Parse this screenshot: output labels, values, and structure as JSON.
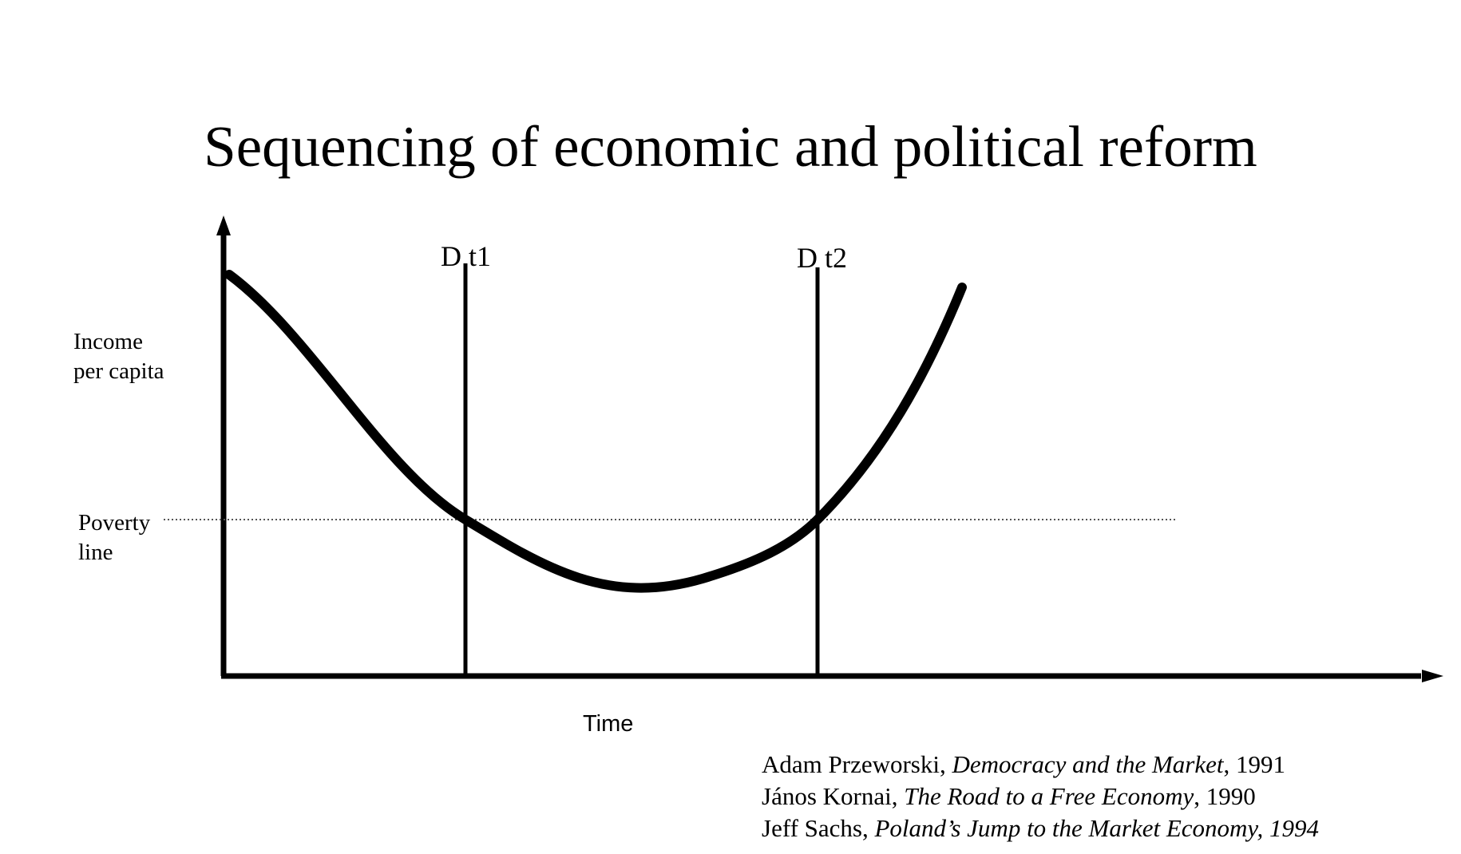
{
  "slide": {
    "title": "Sequencing of economic and political reform"
  },
  "diagram": {
    "y_axis_label_lines": [
      "Income",
      "per capita"
    ],
    "x_axis_label": "Time",
    "poverty_line_label_lines": [
      "Poverty",
      "line"
    ],
    "markers": [
      {
        "label": "D t1"
      },
      {
        "label": "D t2"
      }
    ],
    "curve": {
      "shape": "U-shaped income path",
      "description_of_trend": "income falls below poverty line, reaches a minimum, then rises above it"
    },
    "colors": {
      "line": "#000000",
      "poverty_line": "#555555",
      "background": "#ffffff"
    }
  },
  "references": [
    {
      "author": "Adam Przeworski, ",
      "title": "Democracy and the Market",
      "tail": ", 1991"
    },
    {
      "author": "János Kornai, ",
      "title": "The Road to a Free Economy",
      "tail": ", 1990"
    },
    {
      "author": "Jeff Sachs, ",
      "title": "Poland’s Jump to the Market Economy, 1994",
      "tail": ""
    }
  ]
}
